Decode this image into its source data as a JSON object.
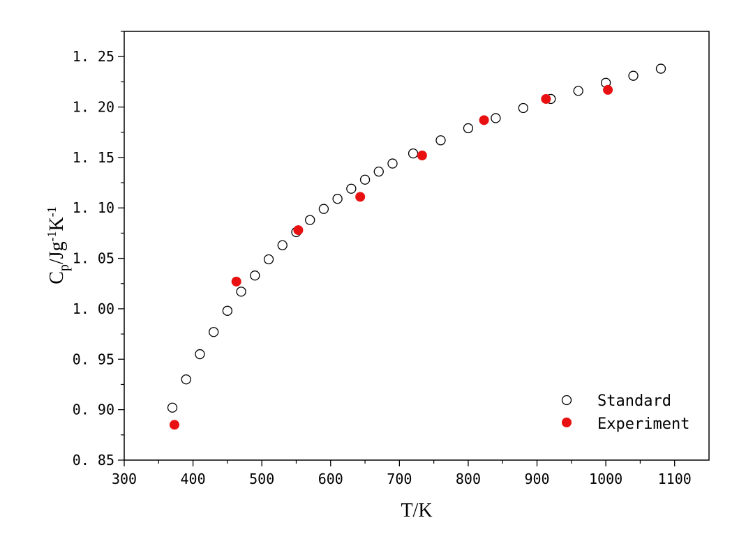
{
  "chart_data": {
    "type": "scatter",
    "xlabel": "T/K",
    "ylabel": {
      "base": "C",
      "sub": "p",
      "mid1": "/Jg",
      "sup1": "-1",
      "mid2": "K",
      "sup2": "-1"
    },
    "xlim": [
      300,
      1150
    ],
    "ylim": [
      0.85,
      1.275
    ],
    "x_ticks": [
      300,
      400,
      500,
      600,
      700,
      800,
      900,
      1000,
      1100
    ],
    "x_tick_labels": [
      "300",
      "400",
      "500",
      "600",
      "700",
      "800",
      "900",
      "1000",
      "1100"
    ],
    "y_ticks": [
      0.85,
      0.9,
      0.95,
      1.0,
      1.05,
      1.1,
      1.15,
      1.2,
      1.25
    ],
    "y_tick_labels": [
      "0. 85",
      "0. 90",
      "0. 95",
      "1. 00",
      "1. 05",
      "1. 10",
      "1. 15",
      "1. 20",
      "1. 25"
    ],
    "legend_position": "bottom-right",
    "series": [
      {
        "name": "Standard",
        "marker": "open-circle",
        "color": "#000000",
        "points": [
          [
            370,
            0.902
          ],
          [
            390,
            0.93
          ],
          [
            410,
            0.955
          ],
          [
            430,
            0.977
          ],
          [
            450,
            0.998
          ],
          [
            470,
            1.017
          ],
          [
            490,
            1.033
          ],
          [
            510,
            1.049
          ],
          [
            530,
            1.063
          ],
          [
            550,
            1.076
          ],
          [
            570,
            1.088
          ],
          [
            590,
            1.099
          ],
          [
            610,
            1.109
          ],
          [
            630,
            1.119
          ],
          [
            650,
            1.128
          ],
          [
            670,
            1.136
          ],
          [
            690,
            1.144
          ],
          [
            720,
            1.154
          ],
          [
            760,
            1.167
          ],
          [
            800,
            1.179
          ],
          [
            840,
            1.189
          ],
          [
            880,
            1.199
          ],
          [
            920,
            1.208
          ],
          [
            960,
            1.216
          ],
          [
            1000,
            1.224
          ],
          [
            1040,
            1.231
          ],
          [
            1080,
            1.238
          ]
        ]
      },
      {
        "name": "Experiment",
        "marker": "filled-circle",
        "color": "#e81010",
        "points": [
          [
            373,
            0.885
          ],
          [
            463,
            1.027
          ],
          [
            553,
            1.078
          ],
          [
            643,
            1.111
          ],
          [
            733,
            1.152
          ],
          [
            823,
            1.187
          ],
          [
            913,
            1.208
          ],
          [
            1003,
            1.217
          ]
        ]
      }
    ]
  }
}
